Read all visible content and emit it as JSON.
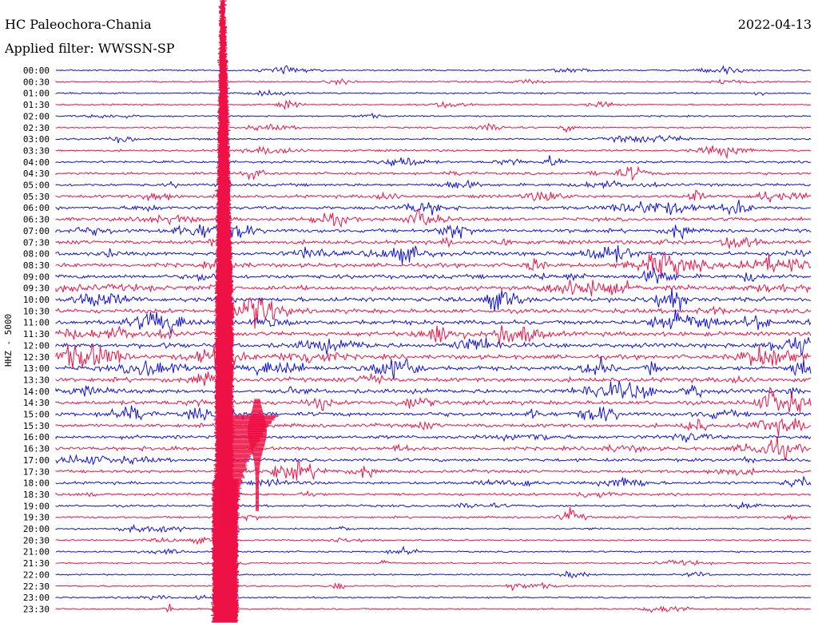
{
  "chart_data": {
    "type": "line",
    "station": "HC Paleochora-Chania",
    "date": "2022-04-13",
    "filter_label": "Applied filter: WWSSN-SP",
    "channel_label": "HHZ - 5000",
    "row_labels": [
      "00:00",
      "00:30",
      "01:00",
      "01:30",
      "02:00",
      "02:30",
      "03:00",
      "03:30",
      "04:00",
      "04:30",
      "05:00",
      "05:30",
      "06:00",
      "06:30",
      "07:00",
      "07:30",
      "08:00",
      "08:30",
      "09:00",
      "09:30",
      "10:00",
      "10:30",
      "11:00",
      "11:30",
      "12:00",
      "12:30",
      "13:00",
      "13:30",
      "14:00",
      "14:30",
      "15:00",
      "15:30",
      "16:00",
      "16:30",
      "17:00",
      "17:30",
      "18:00",
      "18:30",
      "19:00",
      "19:30",
      "20:00",
      "20:30",
      "21:00",
      "21:30",
      "22:00",
      "22:30",
      "23:00",
      "23:30"
    ],
    "colors": {
      "even": "#1010e0",
      "odd": "#ee1145"
    },
    "grid": false,
    "events": [
      {
        "type": "major_earthquake",
        "time": "≈00:30–23:59 trace 00:00 column",
        "x_fraction": 0.266,
        "note": "large saturated arrival"
      }
    ]
  }
}
